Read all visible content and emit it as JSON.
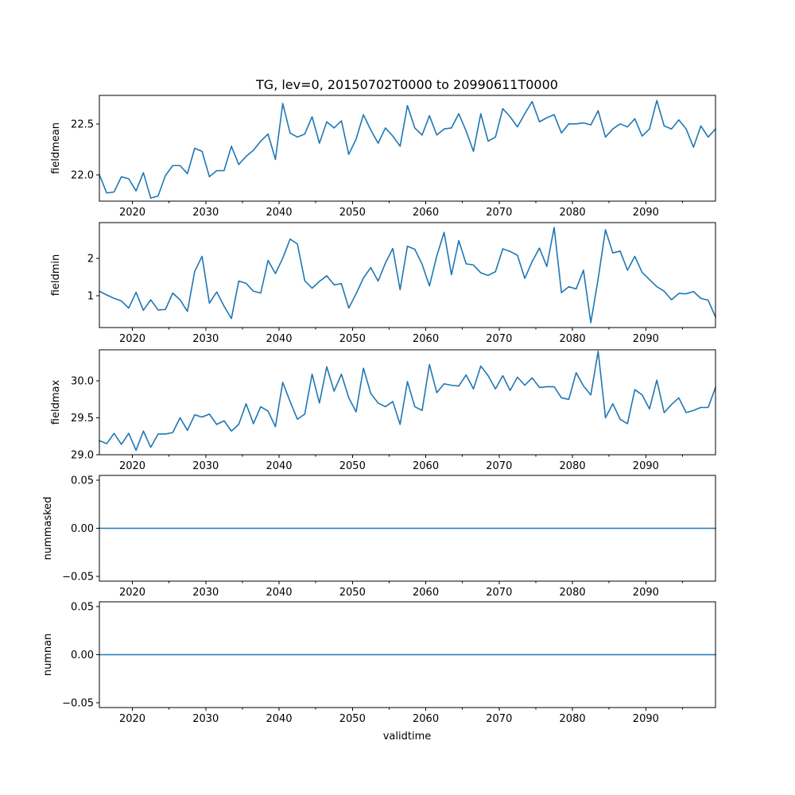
{
  "chart_data": {
    "type": "line",
    "title": "TG, lev=0, 20150702T0000 to 20990611T0000",
    "xlabel": "validtime",
    "xlim": [
      2015.5,
      2099.5
    ],
    "xticks": [
      2020,
      2030,
      2040,
      2050,
      2060,
      2070,
      2080,
      2090
    ],
    "xtick_labels": [
      "2020",
      "2030",
      "2040",
      "2050",
      "2060",
      "2070",
      "2080",
      "2090"
    ],
    "line_color": "#1f77b4",
    "panels": [
      {
        "name": "fieldmean",
        "ylabel": "fieldmean",
        "ylim": [
          21.74,
          22.78
        ],
        "yticks": [
          22.0,
          22.5
        ],
        "ytick_labels": [
          "22.0",
          "22.5"
        ],
        "x": [
          2015.5,
          2016.5,
          2017.5,
          2018.5,
          2019.5,
          2020.5,
          2021.5,
          2022.5,
          2023.5,
          2024.5,
          2025.5,
          2026.5,
          2027.5,
          2028.5,
          2029.5,
          2030.5,
          2031.5,
          2032.5,
          2033.5,
          2034.5,
          2035.5,
          2036.5,
          2037.5,
          2038.5,
          2039.5,
          2040.5,
          2041.5,
          2042.5,
          2043.5,
          2044.5,
          2045.5,
          2046.5,
          2047.5,
          2048.5,
          2049.5,
          2050.5,
          2051.5,
          2052.5,
          2053.5,
          2054.5,
          2055.5,
          2056.5,
          2057.5,
          2058.5,
          2059.5,
          2060.5,
          2061.5,
          2062.5,
          2063.5,
          2064.5,
          2065.5,
          2066.5,
          2067.5,
          2068.5,
          2069.5,
          2070.5,
          2071.5,
          2072.5,
          2073.5,
          2074.5,
          2075.5,
          2076.5,
          2077.5,
          2078.5,
          2079.5,
          2080.5,
          2081.5,
          2082.5,
          2083.5,
          2084.5,
          2085.5,
          2086.5,
          2087.5,
          2088.5,
          2089.5,
          2090.5,
          2091.5,
          2092.5,
          2093.5,
          2094.5,
          2095.5,
          2096.5,
          2097.5,
          2098.5,
          2099.5
        ],
        "values": [
          22.0,
          21.82,
          21.83,
          21.98,
          21.96,
          21.84,
          22.02,
          21.77,
          21.79,
          21.99,
          22.09,
          22.09,
          22.01,
          22.26,
          22.23,
          21.98,
          22.04,
          22.04,
          22.28,
          22.1,
          22.18,
          22.24,
          22.33,
          22.4,
          22.15,
          22.7,
          22.41,
          22.37,
          22.4,
          22.57,
          22.31,
          22.52,
          22.46,
          22.53,
          22.2,
          22.35,
          22.59,
          22.44,
          22.31,
          22.46,
          22.38,
          22.28,
          22.68,
          22.46,
          22.39,
          22.58,
          22.39,
          22.45,
          22.46,
          22.6,
          22.43,
          22.23,
          22.6,
          22.33,
          22.37,
          22.65,
          22.57,
          22.47,
          22.6,
          22.72,
          22.52,
          22.56,
          22.59,
          22.41,
          22.5,
          22.5,
          22.51,
          22.49,
          22.63,
          22.37,
          22.45,
          22.5,
          22.47,
          22.55,
          22.38,
          22.45,
          22.73,
          22.48,
          22.45,
          22.54,
          22.45,
          22.27,
          22.48,
          22.37,
          22.45
        ]
      },
      {
        "name": "fieldmin",
        "ylabel": "fieldmin",
        "ylim": [
          0.15,
          2.95
        ],
        "yticks": [
          1,
          2
        ],
        "ytick_labels": [
          "1",
          "2"
        ],
        "x": [
          2015.5,
          2016.5,
          2017.5,
          2018.5,
          2019.5,
          2020.5,
          2021.5,
          2022.5,
          2023.5,
          2024.5,
          2025.5,
          2026.5,
          2027.5,
          2028.5,
          2029.5,
          2030.5,
          2031.5,
          2032.5,
          2033.5,
          2034.5,
          2035.5,
          2036.5,
          2037.5,
          2038.5,
          2039.5,
          2040.5,
          2041.5,
          2042.5,
          2043.5,
          2044.5,
          2045.5,
          2046.5,
          2047.5,
          2048.5,
          2049.5,
          2050.5,
          2051.5,
          2052.5,
          2053.5,
          2054.5,
          2055.5,
          2056.5,
          2057.5,
          2058.5,
          2059.5,
          2060.5,
          2061.5,
          2062.5,
          2063.5,
          2064.5,
          2065.5,
          2066.5,
          2067.5,
          2068.5,
          2069.5,
          2070.5,
          2071.5,
          2072.5,
          2073.5,
          2074.5,
          2075.5,
          2076.5,
          2077.5,
          2078.5,
          2079.5,
          2080.5,
          2081.5,
          2082.5,
          2083.5,
          2084.5,
          2085.5,
          2086.5,
          2087.5,
          2088.5,
          2089.5,
          2090.5,
          2091.5,
          2092.5,
          2093.5,
          2094.5,
          2095.5,
          2096.5,
          2097.5,
          2098.5,
          2099.5
        ],
        "values": [
          1.12,
          1.02,
          0.93,
          0.86,
          0.67,
          1.09,
          0.61,
          0.89,
          0.62,
          0.63,
          1.07,
          0.89,
          0.58,
          1.65,
          2.05,
          0.8,
          1.1,
          0.72,
          0.39,
          1.39,
          1.33,
          1.12,
          1.07,
          1.94,
          1.59,
          2.0,
          2.51,
          2.38,
          1.4,
          1.2,
          1.38,
          1.53,
          1.29,
          1.32,
          0.67,
          1.05,
          1.47,
          1.75,
          1.39,
          1.87,
          2.26,
          1.16,
          2.32,
          2.24,
          1.84,
          1.26,
          2.06,
          2.69,
          1.56,
          2.47,
          1.85,
          1.82,
          1.61,
          1.54,
          1.64,
          2.25,
          2.18,
          2.08,
          1.46,
          1.91,
          2.27,
          1.78,
          2.82,
          1.08,
          1.24,
          1.18,
          1.68,
          0.28,
          1.45,
          2.76,
          2.14,
          2.19,
          1.68,
          2.05,
          1.62,
          1.43,
          1.24,
          1.12,
          0.89,
          1.06,
          1.05,
          1.11,
          0.93,
          0.88,
          0.43
        ]
      },
      {
        "name": "fieldmax",
        "ylabel": "fieldmax",
        "ylim": [
          29.0,
          30.42
        ],
        "yticks": [
          29.0,
          29.5,
          30.0
        ],
        "ytick_labels": [
          "29.0",
          "29.5",
          "30.0"
        ],
        "x": [
          2015.5,
          2016.5,
          2017.5,
          2018.5,
          2019.5,
          2020.5,
          2021.5,
          2022.5,
          2023.5,
          2024.5,
          2025.5,
          2026.5,
          2027.5,
          2028.5,
          2029.5,
          2030.5,
          2031.5,
          2032.5,
          2033.5,
          2034.5,
          2035.5,
          2036.5,
          2037.5,
          2038.5,
          2039.5,
          2040.5,
          2041.5,
          2042.5,
          2043.5,
          2044.5,
          2045.5,
          2046.5,
          2047.5,
          2048.5,
          2049.5,
          2050.5,
          2051.5,
          2052.5,
          2053.5,
          2054.5,
          2055.5,
          2056.5,
          2057.5,
          2058.5,
          2059.5,
          2060.5,
          2061.5,
          2062.5,
          2063.5,
          2064.5,
          2065.5,
          2066.5,
          2067.5,
          2068.5,
          2069.5,
          2070.5,
          2071.5,
          2072.5,
          2073.5,
          2074.5,
          2075.5,
          2076.5,
          2077.5,
          2078.5,
          2079.5,
          2080.5,
          2081.5,
          2082.5,
          2083.5,
          2084.5,
          2085.5,
          2086.5,
          2087.5,
          2088.5,
          2089.5,
          2090.5,
          2091.5,
          2092.5,
          2093.5,
          2094.5,
          2095.5,
          2096.5,
          2097.5,
          2098.5,
          2099.5
        ],
        "values": [
          29.19,
          29.15,
          29.29,
          29.14,
          29.29,
          29.06,
          29.32,
          29.1,
          29.28,
          29.28,
          29.3,
          29.5,
          29.33,
          29.54,
          29.51,
          29.55,
          29.41,
          29.46,
          29.32,
          29.41,
          29.69,
          29.42,
          29.65,
          29.59,
          29.38,
          29.98,
          29.72,
          29.48,
          29.55,
          30.09,
          29.7,
          30.19,
          29.86,
          30.09,
          29.77,
          29.58,
          30.17,
          29.83,
          29.7,
          29.65,
          29.72,
          29.41,
          29.99,
          29.65,
          29.6,
          30.22,
          29.84,
          29.96,
          29.94,
          29.93,
          30.08,
          29.89,
          30.2,
          30.07,
          29.89,
          30.07,
          29.87,
          30.05,
          29.94,
          30.04,
          29.91,
          29.92,
          29.92,
          29.77,
          29.75,
          30.11,
          29.93,
          29.81,
          30.4,
          29.5,
          29.69,
          29.48,
          29.42,
          29.88,
          29.81,
          29.62,
          30.01,
          29.57,
          29.68,
          29.77,
          29.57,
          29.6,
          29.64,
          29.64,
          29.91
        ]
      },
      {
        "name": "nummasked",
        "ylabel": "nummasked",
        "ylim": [
          -0.055,
          0.055
        ],
        "yticks": [
          -0.05,
          0.0,
          0.05
        ],
        "ytick_labels": [
          "−0.05",
          "0.00",
          "0.05"
        ],
        "x": [
          2015.5,
          2099.5
        ],
        "values": [
          0.0,
          0.0
        ]
      },
      {
        "name": "numnan",
        "ylabel": "numnan",
        "ylim": [
          -0.055,
          0.055
        ],
        "yticks": [
          -0.05,
          0.0,
          0.05
        ],
        "ytick_labels": [
          "−0.05",
          "0.00",
          "0.05"
        ],
        "x": [
          2015.5,
          2099.5
        ],
        "values": [
          0.0,
          0.0
        ]
      }
    ]
  }
}
